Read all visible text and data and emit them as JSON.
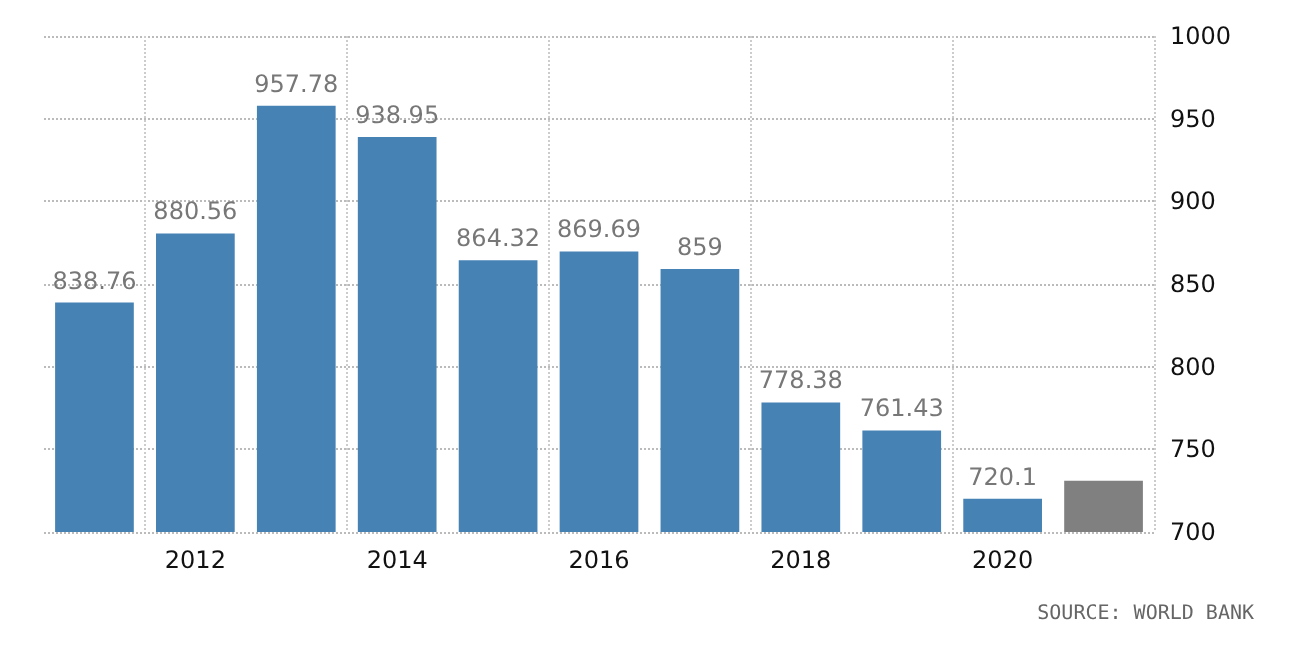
{
  "chart_data": {
    "type": "bar",
    "categories": [
      null,
      "2012",
      null,
      "2014",
      null,
      "2016",
      null,
      "2018",
      null,
      "2020",
      null
    ],
    "values": [
      838.76,
      880.56,
      957.78,
      938.95,
      864.32,
      869.69,
      859,
      778.38,
      761.43,
      720.1,
      731
    ],
    "colors": [
      "#4682b4",
      "#4682b4",
      "#4682b4",
      "#4682b4",
      "#4682b4",
      "#4682b4",
      "#4682b4",
      "#4682b4",
      "#4682b4",
      "#4682b4",
      "#808080"
    ],
    "value_labels": [
      "838.76",
      "880.56",
      "957.78",
      "938.95",
      "864.32",
      "869.69",
      "859",
      "778.38",
      "761.43",
      "720.1",
      null
    ],
    "ylim": [
      700,
      1000
    ],
    "yticks": [
      700,
      750,
      800,
      850,
      900,
      950,
      1000
    ],
    "grid": true,
    "annotations": [
      "SOURCE: WORLD BANK"
    ]
  }
}
